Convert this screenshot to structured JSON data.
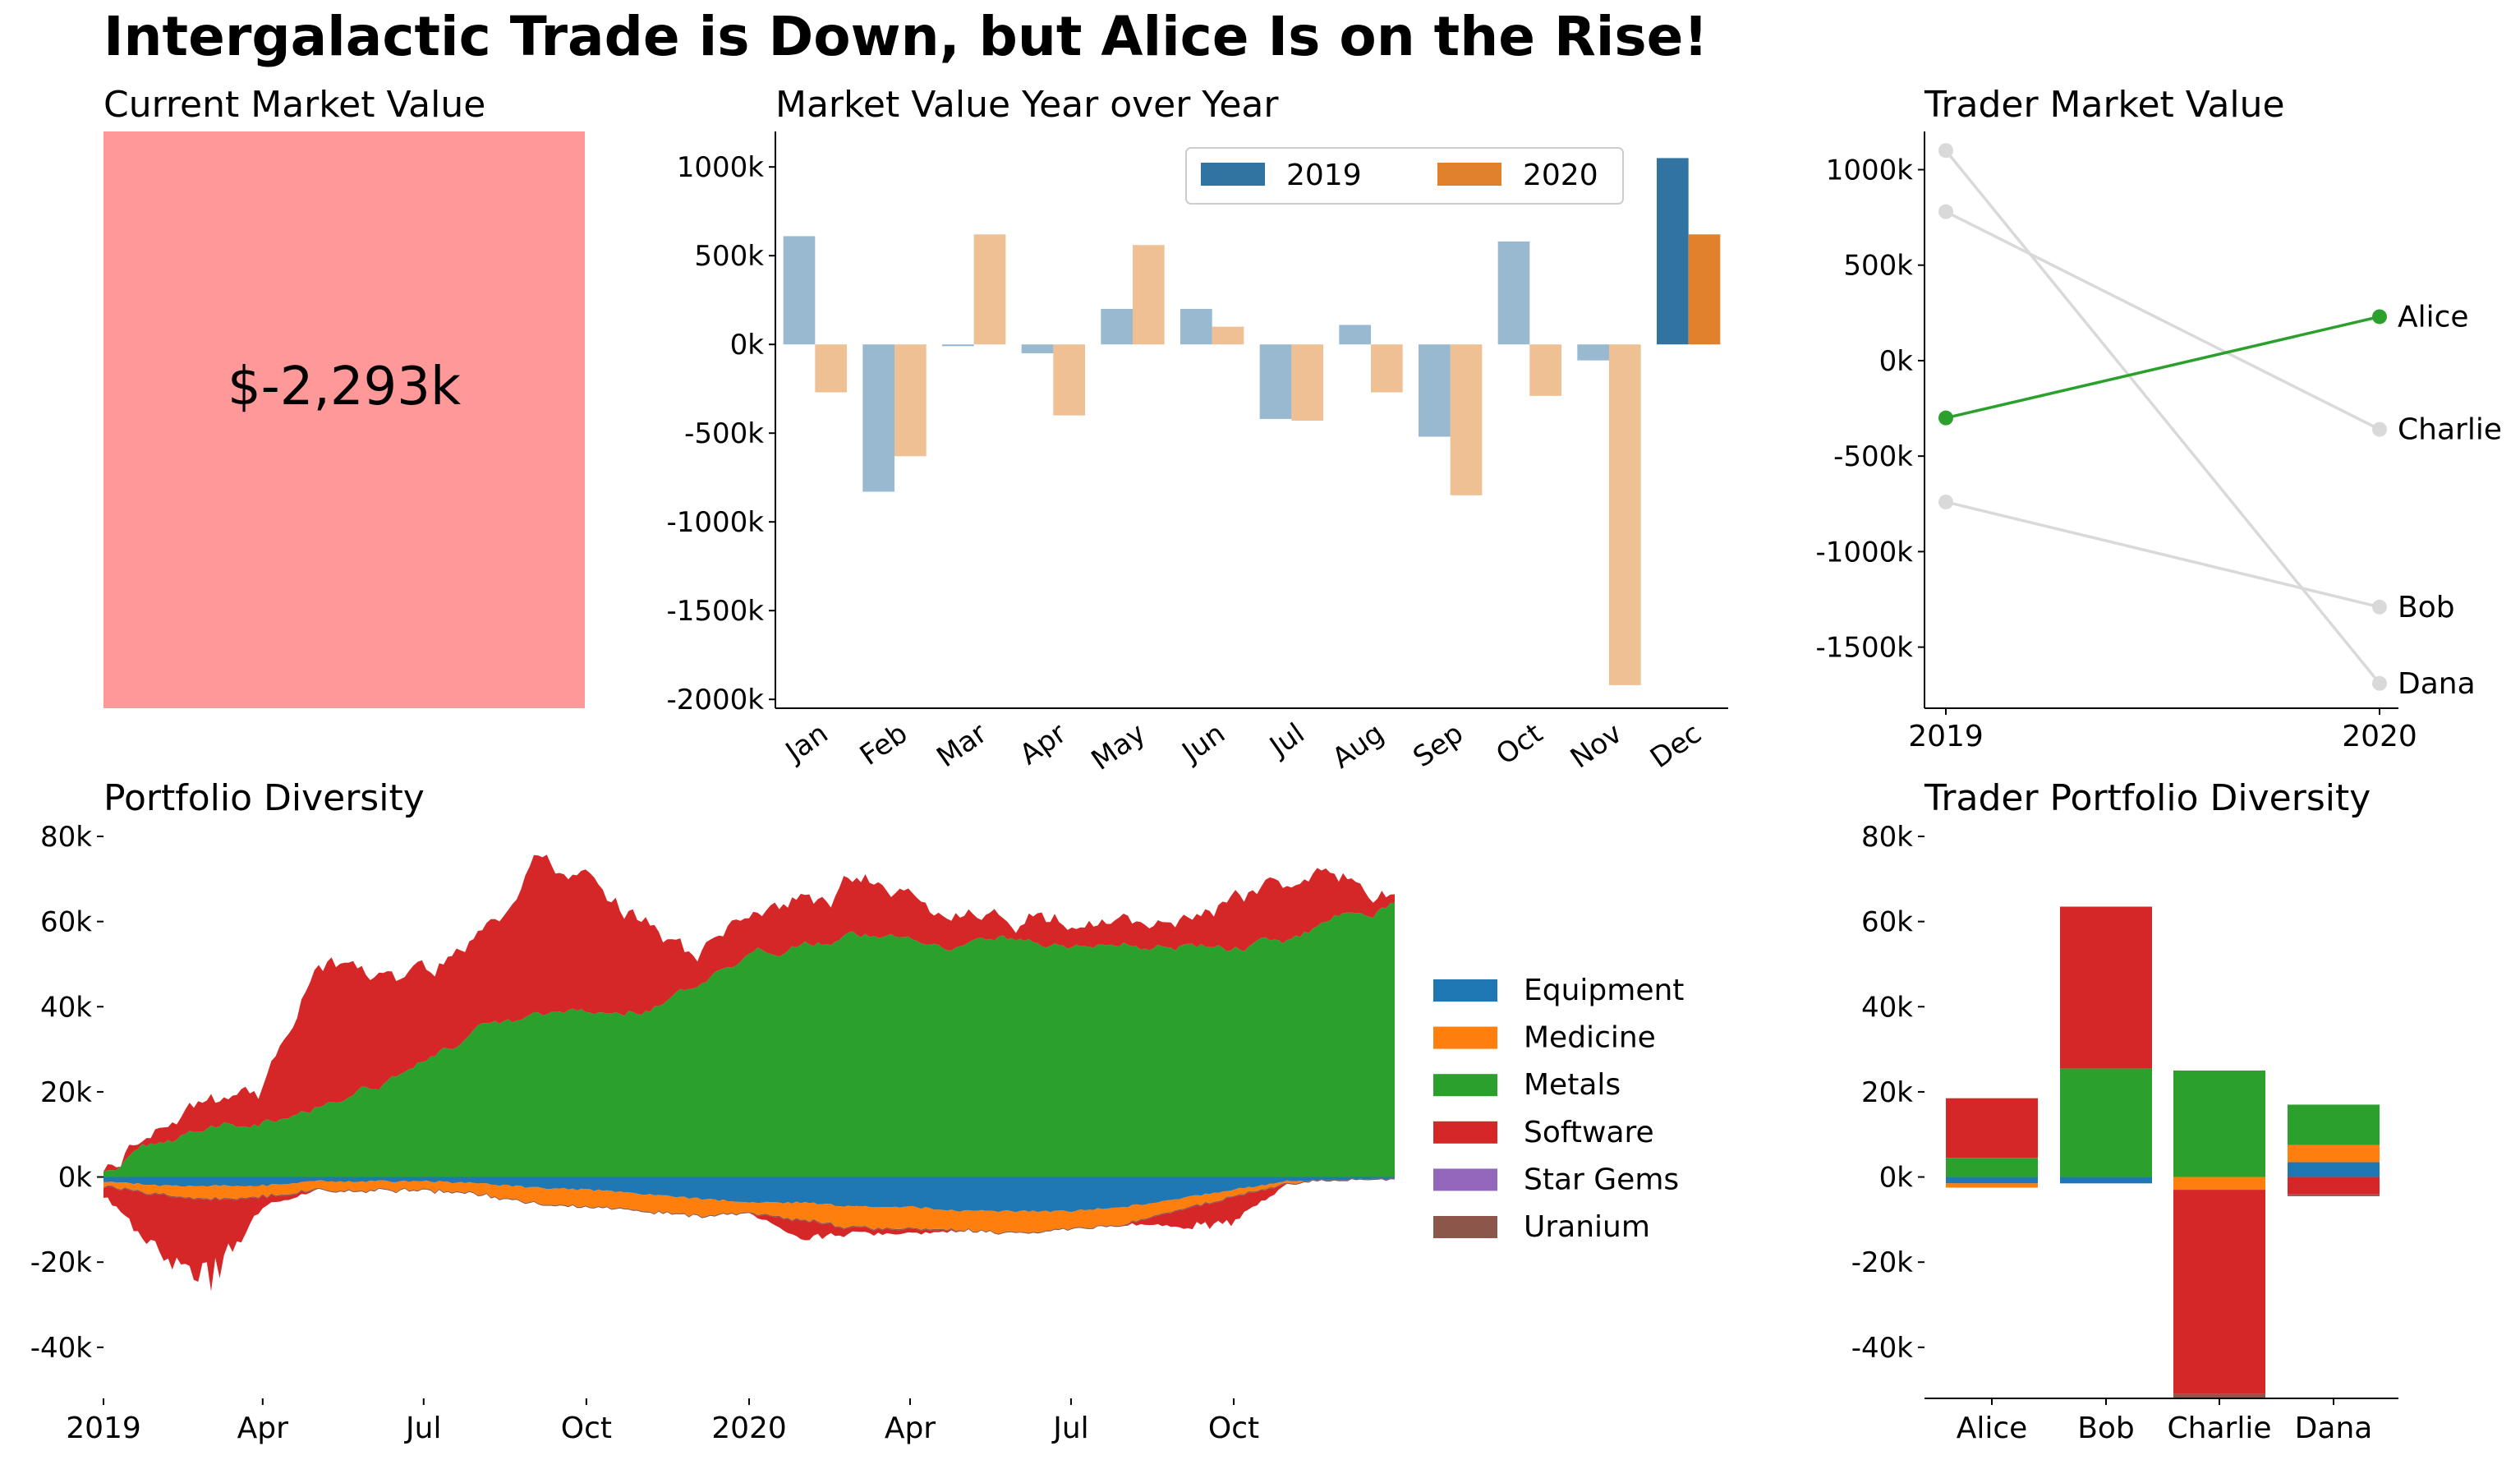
{
  "title": "Intergalactic Trade is Down, but Alice Is on the Rise!",
  "colors": {
    "2019": "#3274a1",
    "2020": "#e1812c",
    "Equipment": "#1f77b4",
    "Medicine": "#ff7f0e",
    "Metals": "#2ca02c",
    "Software": "#d62728",
    "Star Gems": "#9467bd",
    "Uranium": "#8c564b",
    "kpi_fill": "#ff9999",
    "highlight": "#2ca02c",
    "muted": "#d9d9d9"
  },
  "chart_data": [
    {
      "id": "kpi",
      "type": "table",
      "title": "Current Market Value",
      "value": "$-2,293k"
    },
    {
      "id": "yoy",
      "type": "bar",
      "title": "Market Value Year over Year",
      "categories": [
        "Jan",
        "Feb",
        "Mar",
        "Apr",
        "May",
        "Jun",
        "Jul",
        "Aug",
        "Sep",
        "Oct",
        "Nov",
        "Dec"
      ],
      "series": [
        {
          "name": "2019",
          "values": [
            610000,
            -830000,
            -10000,
            -50000,
            200000,
            200000,
            -420000,
            110000,
            -520000,
            580000,
            -90000,
            1050000
          ]
        },
        {
          "name": "2020",
          "values": [
            -270000,
            -630000,
            620000,
            -400000,
            560000,
            100000,
            -430000,
            -270000,
            -850000,
            -290000,
            -1920000,
            620000
          ]
        }
      ],
      "ylim": [
        -2050000,
        1200000
      ],
      "yticks": [
        "1000k",
        "500k",
        "0k",
        "-500k",
        "-1000k",
        "-1500k",
        "-2000k"
      ],
      "legend": "top-right"
    },
    {
      "id": "trader_value",
      "type": "line",
      "title": "Trader Market Value",
      "x": [
        "2019",
        "2020"
      ],
      "series": [
        {
          "name": "Alice",
          "values": [
            -300000,
            230000
          ],
          "highlight": true
        },
        {
          "name": "Charlie",
          "values": [
            780000,
            -360000
          ]
        },
        {
          "name": "Bob",
          "values": [
            -740000,
            -1290000
          ]
        },
        {
          "name": "Dana",
          "values": [
            1100000,
            -1690000
          ]
        }
      ],
      "ylim": [
        -1820000,
        1200000
      ],
      "yticks": [
        "1000k",
        "500k",
        "0k",
        "-500k",
        "-1000k",
        "-1500k"
      ]
    },
    {
      "id": "portfolio",
      "type": "area",
      "title": "Portfolio Diversity",
      "xticks": [
        "2019",
        "Apr",
        "Jul",
        "Oct",
        "2020",
        "Apr",
        "Jul",
        "Oct"
      ],
      "yticks": [
        "80k",
        "60k",
        "40k",
        "20k",
        "0k",
        "-20k",
        "-40k"
      ],
      "ylim": [
        -52000,
        80000
      ],
      "categories": [
        "Equipment",
        "Medicine",
        "Metals",
        "Software",
        "Star Gems",
        "Uranium"
      ],
      "legend": "right",
      "monthly_positive_metals": [
        2000,
        8000,
        12000,
        14000,
        18000,
        22000,
        28000,
        34000,
        36000,
        38000,
        40000,
        44000,
        50000,
        56000,
        57000,
        56000,
        55000,
        56000,
        54000,
        55000,
        55000,
        54000,
        55000,
        62000,
        65000
      ],
      "monthly_positive_software": [
        1000,
        4000,
        8000,
        8000,
        36000,
        26000,
        20000,
        22000,
        34000,
        30000,
        20000,
        6000,
        10000,
        10000,
        12000,
        10000,
        5000,
        5000,
        7000,
        4000,
        8000,
        10000,
        12000,
        10000,
        3000
      ],
      "monthly_negative_equipment": [
        -1000,
        -2000,
        -2000,
        -2000,
        -1000,
        -1000,
        -1000,
        -1500,
        -2500,
        -3000,
        -4000,
        -5000,
        -6000,
        -6000,
        -7000,
        -7000,
        -8000,
        -8000,
        -8000,
        -7000,
        -5000,
        -3000,
        -1000,
        -500,
        -500
      ],
      "monthly_negative_medicine": [
        -1000,
        -2000,
        -3000,
        -2500,
        -2000,
        -2000,
        -2000,
        -2500,
        -3500,
        -4000,
        -4000,
        -4000,
        -2500,
        -4000,
        -5000,
        -5000,
        -4500,
        -5000,
        -4000,
        -4000,
        -2500,
        -1500,
        -500,
        500,
        1000
      ],
      "monthly_negative_software": [
        -2000,
        -14000,
        -18000,
        -2000,
        0,
        0,
        0,
        0,
        0,
        0,
        0,
        0,
        0,
        -4000,
        -1000,
        -1000,
        0,
        0,
        0,
        0,
        -4000,
        -6000,
        0,
        0,
        0
      ]
    },
    {
      "id": "trader_portfolio",
      "type": "bar",
      "title": "Trader Portfolio Diversity",
      "categories": [
        "Alice",
        "Bob",
        "Charlie",
        "Dana"
      ],
      "stacked": true,
      "series": [
        {
          "name": "Equipment",
          "values": [
            -1500,
            -1500,
            0,
            3500
          ]
        },
        {
          "name": "Medicine",
          "values": [
            -1000,
            0,
            -3000,
            4000
          ]
        },
        {
          "name": "Metals",
          "values": [
            4500,
            25500,
            25000,
            9500
          ]
        },
        {
          "name": "Software",
          "values": [
            14000,
            38000,
            -48000,
            -4000
          ]
        },
        {
          "name": "Star Gems",
          "values": [
            0,
            0,
            0,
            0
          ]
        },
        {
          "name": "Uranium",
          "values": [
            0,
            0,
            -1000,
            -500
          ]
        }
      ],
      "ylim": [
        -52000,
        80000
      ],
      "yticks": [
        "80k",
        "60k",
        "40k",
        "20k",
        "0k",
        "-20k",
        "-40k"
      ]
    }
  ]
}
